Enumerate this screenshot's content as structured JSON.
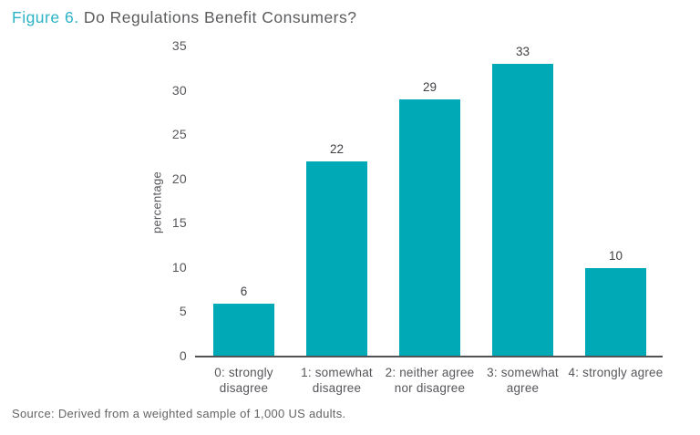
{
  "title": {
    "figure_label": "Figure 6.",
    "text": " Do Regulations Benefit Consumers?"
  },
  "source": "Source: Derived from a weighted sample of 1,000 US adults.",
  "colors": {
    "bar": "#00A9B6",
    "figure_label": "#2BB3C6",
    "title_text": "#5B5C5E",
    "axis_text": "#55565A",
    "value_label": "#3E4043",
    "axis_line": "#515254",
    "source_text": "#636466"
  },
  "chart_data": {
    "type": "bar",
    "title": "Figure 6. Do Regulations Benefit Consumers?",
    "categories": [
      "0: strongly\ndisagree",
      "1: somewhat\ndisagree",
      "2: neither agree\nnor disagree",
      "3: somewhat\nagree",
      "4: strongly agree"
    ],
    "values": [
      6,
      22,
      29,
      33,
      10
    ],
    "value_labels": [
      "6",
      "22",
      "29",
      "33",
      "10"
    ],
    "xlabel": "",
    "ylabel": "percentage",
    "ylim": [
      0,
      35
    ],
    "yticks": [
      0,
      5,
      10,
      15,
      20,
      25,
      30,
      35
    ],
    "grid": false,
    "legend": "none",
    "bar_color": "#00A9B6",
    "source": "Source: Derived from a weighted sample of 1,000 US adults."
  }
}
